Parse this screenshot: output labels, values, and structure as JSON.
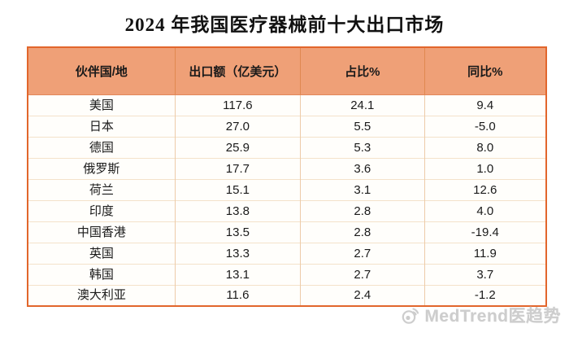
{
  "title": "2024 年我国医疗器械前十大出口市场",
  "table": {
    "columns": [
      "伙伴国/地",
      "出口额（亿美元）",
      "占比%",
      "同比%"
    ],
    "rows": [
      {
        "market": "美国",
        "export": "117.6",
        "share": "24.1",
        "yoy": "9.4"
      },
      {
        "market": "日本",
        "export": "27.0",
        "share": "5.5",
        "yoy": "-5.0"
      },
      {
        "market": "德国",
        "export": "25.9",
        "share": "5.3",
        "yoy": "8.0"
      },
      {
        "market": "俄罗斯",
        "export": "17.7",
        "share": "3.6",
        "yoy": "1.0"
      },
      {
        "market": "荷兰",
        "export": "15.1",
        "share": "3.1",
        "yoy": "12.6"
      },
      {
        "market": "印度",
        "export": "13.8",
        "share": "2.8",
        "yoy": "4.0"
      },
      {
        "market": "中国香港",
        "export": "13.5",
        "share": "2.8",
        "yoy": "-19.4"
      },
      {
        "market": "英国",
        "export": "13.3",
        "share": "2.7",
        "yoy": "11.9"
      },
      {
        "market": "韩国",
        "export": "13.1",
        "share": "2.7",
        "yoy": "3.7"
      },
      {
        "market": "澳大利亚",
        "export": "11.6",
        "share": "2.4",
        "yoy": "-1.2"
      }
    ]
  },
  "watermark": {
    "icon": "weibo-camera-icon",
    "text": "MedTrend医趋势"
  },
  "colors": {
    "header_bg": "#EFA077",
    "outer_border": "#E2662C",
    "header_divider": "#E08850",
    "column_divider": "#EDCBA8",
    "row_divider": "#F4E2CA",
    "body_bg": "#FFFEFB",
    "title_text": "#111111",
    "body_text": "#1A1A1A",
    "watermark_text": "#CDCDCD"
  },
  "chart_data": {
    "type": "table",
    "title": "2024 年我国医疗器械前十大出口市场",
    "columns": [
      "伙伴国/地",
      "出口额（亿美元）",
      "占比%",
      "同比%"
    ],
    "rows": [
      [
        "美国",
        117.6,
        24.1,
        9.4
      ],
      [
        "日本",
        27.0,
        5.5,
        -5.0
      ],
      [
        "德国",
        25.9,
        5.3,
        8.0
      ],
      [
        "俄罗斯",
        17.7,
        3.6,
        1.0
      ],
      [
        "荷兰",
        15.1,
        3.1,
        12.6
      ],
      [
        "印度",
        13.8,
        2.8,
        4.0
      ],
      [
        "中国香港",
        13.5,
        2.8,
        -19.4
      ],
      [
        "英国",
        13.3,
        2.7,
        11.9
      ],
      [
        "韩国",
        13.1,
        2.7,
        3.7
      ],
      [
        "澳大利亚",
        11.6,
        2.4,
        -1.2
      ]
    ]
  }
}
